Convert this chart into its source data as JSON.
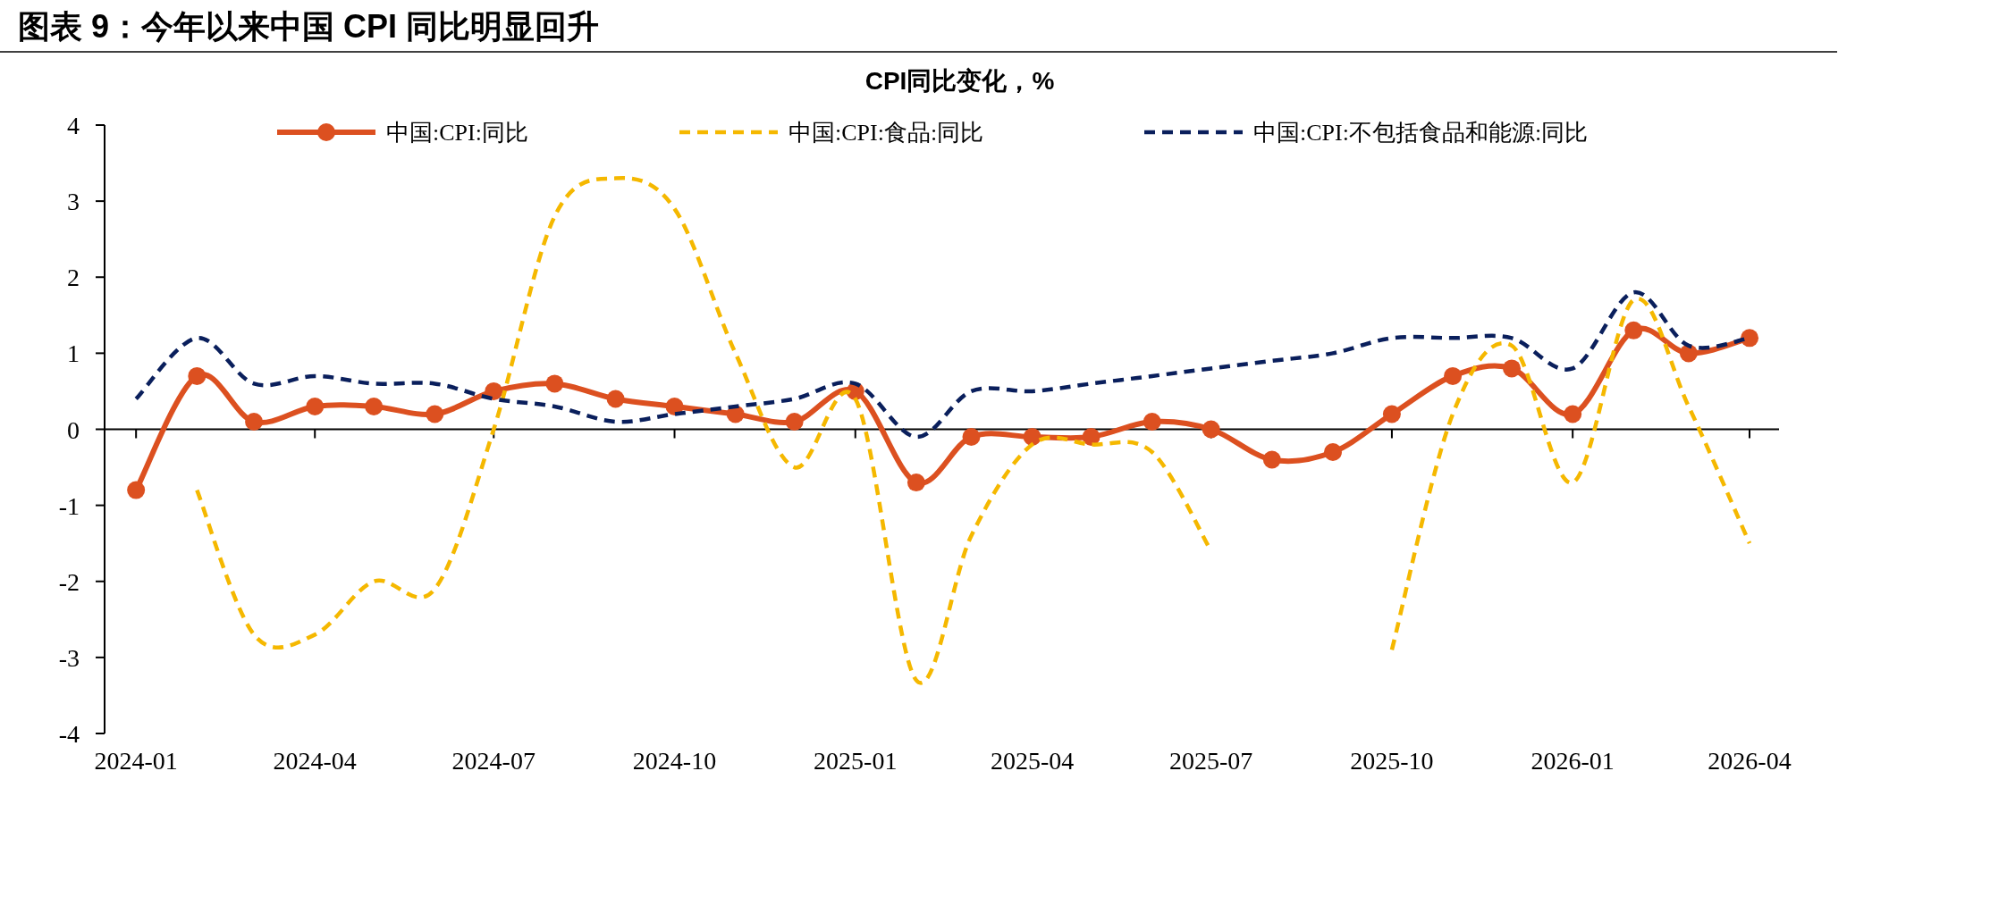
{
  "chart_data": {
    "type": "line",
    "title": "图表 9：今年以来中国 CPI 同比明显回升",
    "subtitle": "CPI同比变化，%",
    "x": [
      "2024-01",
      "2024-02",
      "2024-03",
      "2024-04",
      "2024-05",
      "2024-06",
      "2024-07",
      "2024-08",
      "2024-09",
      "2024-10",
      "2024-11",
      "2024-12",
      "2025-01",
      "2025-02",
      "2025-03",
      "2025-04",
      "2025-05",
      "2025-06",
      "2025-07",
      "2025-08",
      "2025-09",
      "2025-10",
      "2025-11",
      "2025-12",
      "2026-01",
      "2026-02",
      "2026-03",
      "2026-04"
    ],
    "series": [
      {
        "name": "中国:CPI:同比",
        "color": "#dc5020",
        "marker": "circle",
        "line_style": "solid",
        "values": [
          -0.8,
          0.7,
          0.1,
          0.3,
          0.3,
          0.2,
          0.5,
          0.6,
          0.4,
          0.3,
          0.2,
          0.1,
          0.5,
          -0.7,
          -0.1,
          -0.1,
          -0.1,
          0.1,
          0.0,
          -0.4,
          -0.3,
          0.2,
          0.7,
          0.8,
          0.2,
          1.3,
          1.0,
          1.2
        ]
      },
      {
        "name": "中国:CPI:食品:同比",
        "color": "#f5b800",
        "marker": "none",
        "line_style": "dashed",
        "values": [
          null,
          -0.8,
          -2.7,
          -2.7,
          -2.0,
          -2.1,
          0.0,
          2.8,
          3.3,
          2.9,
          1.0,
          -0.5,
          0.4,
          -3.3,
          -1.4,
          -0.2,
          -0.2,
          -0.3,
          -1.6,
          null,
          null,
          -2.9,
          0.2,
          1.1,
          -0.7,
          1.7,
          0.3,
          -1.5
        ]
      },
      {
        "name": "中国:CPI:不包括食品和能源:同比",
        "color": "#0a1f5c",
        "marker": "none",
        "line_style": "dashed",
        "values": [
          0.4,
          1.2,
          0.6,
          0.7,
          0.6,
          0.6,
          0.4,
          0.3,
          0.1,
          0.2,
          0.3,
          0.4,
          0.6,
          -0.1,
          0.5,
          0.5,
          0.6,
          0.7,
          0.8,
          0.9,
          1.0,
          1.2,
          1.2,
          1.2,
          0.8,
          1.8,
          1.1,
          1.2
        ]
      }
    ],
    "xlim": [
      "2023-12-16",
      "2026-04-16"
    ],
    "xticks": [
      "2024-01",
      "2024-04",
      "2024-07",
      "2024-10",
      "2025-01",
      "2025-04",
      "2025-07",
      "2025-10",
      "2026-01",
      "2026-04"
    ],
    "ylim": [
      -4,
      4
    ],
    "yticks": [
      -4,
      -3,
      -2,
      -1,
      0,
      1,
      2,
      3,
      4
    ],
    "legend": "top"
  }
}
